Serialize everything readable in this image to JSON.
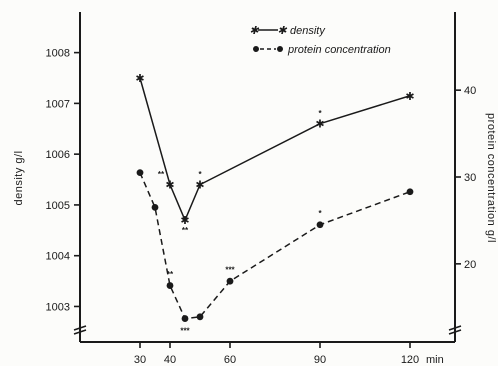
{
  "chart_data": {
    "type": "line",
    "x_tick_labels": [
      "30",
      "40",
      "60",
      "90",
      "120"
    ],
    "x_unit": "min",
    "x": [
      30,
      35,
      40,
      45,
      50,
      60,
      90,
      120
    ],
    "left_axis": {
      "label": "density g/l",
      "tick_labels": [
        "1003",
        "1004",
        "1005",
        "1006",
        "1007",
        "1008"
      ],
      "ylim": [
        1002.3,
        1008.8
      ]
    },
    "right_axis": {
      "label": "protein concentration g/l",
      "tick_labels": [
        "20",
        "30",
        "40"
      ],
      "ylim": [
        11,
        49
      ]
    },
    "legend_placement": "top-right",
    "series": [
      {
        "name": "density",
        "axis": "left",
        "marker": "asterisk",
        "line_style": "solid",
        "color": "#1a1a1a",
        "points": [
          [
            30,
            1007.5
          ],
          [
            40,
            1005.4
          ],
          [
            45,
            1004.7
          ],
          [
            50,
            1005.4
          ],
          [
            90,
            1006.6
          ],
          [
            120,
            1007.15
          ]
        ]
      },
      {
        "name": "protein concentration",
        "axis": "right",
        "marker": "dot",
        "line_style": "dashed",
        "color": "#1a1a1a",
        "points": [
          [
            30,
            30.5
          ],
          [
            35,
            26.5
          ],
          [
            40,
            17.5
          ],
          [
            45,
            13.7
          ],
          [
            50,
            13.9
          ],
          [
            60,
            18.0
          ],
          [
            90,
            24.5
          ],
          [
            120,
            28.3
          ]
        ]
      }
    ],
    "annotations": [
      {
        "text": "**",
        "x": 37,
        "y": 1005.55,
        "axis": "left"
      },
      {
        "text": "**",
        "x": 45,
        "y": 1004.45,
        "axis": "left"
      },
      {
        "text": "*",
        "x": 50,
        "y": 1005.55,
        "axis": "left"
      },
      {
        "text": "*",
        "x": 90,
        "y": 1006.75,
        "axis": "left"
      },
      {
        "text": "**",
        "x": 40,
        "y": 18.5,
        "axis": "right"
      },
      {
        "text": "***",
        "x": 45,
        "y": 12.0,
        "axis": "right"
      },
      {
        "text": "***",
        "x": 60,
        "y": 19.0,
        "axis": "right"
      },
      {
        "text": "*",
        "x": 90,
        "y": 25.5,
        "axis": "right"
      }
    ]
  }
}
